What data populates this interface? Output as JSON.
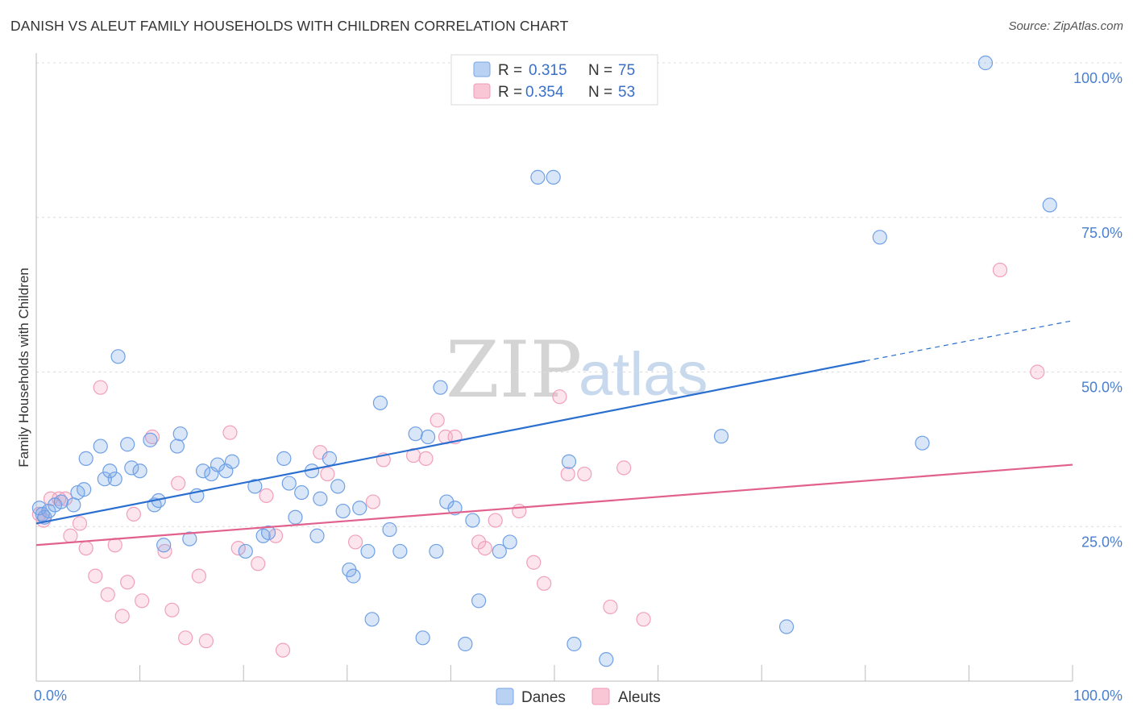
{
  "title": "DANISH VS ALEUT FAMILY HOUSEHOLDS WITH CHILDREN CORRELATION CHART",
  "source": "Source: ZipAtlas.com",
  "watermark": {
    "zip": "ZIP",
    "atlas": "atlas"
  },
  "legend_top": [
    {
      "r_label": "R =",
      "r_value": "0.315",
      "n_label": "N =",
      "n_value": "75"
    },
    {
      "r_label": "R =",
      "r_value": "0.354",
      "n_label": "N =",
      "n_value": "53"
    }
  ],
  "legend_bottom": [
    "Danes",
    "Aleuts"
  ],
  "chart_data": {
    "type": "scatter",
    "title": "DANISH VS ALEUT FAMILY HOUSEHOLDS WITH CHILDREN CORRELATION CHART",
    "xlabel": "",
    "ylabel": "Family Households with Children",
    "xlim": [
      0,
      100
    ],
    "ylim": [
      0,
      100
    ],
    "x_tick_labels": [
      "0.0%",
      "100.0%"
    ],
    "y_ticks": [
      25,
      50,
      75,
      100
    ],
    "y_tick_labels": [
      "25.0%",
      "50.0%",
      "75.0%",
      "100.0%"
    ],
    "grid": "horizontal dashed",
    "legend_placement": "top-center",
    "colors": {
      "danes": "#6fa0e6",
      "aleuts": "#f0a0bc",
      "danes_line": "#2a6fd0",
      "aleuts_line": "#e2608e"
    },
    "series": [
      {
        "name": "Danes",
        "r": 0.315,
        "n": 75,
        "trend": {
          "x0": 0,
          "y0": 25.5,
          "x1": 80,
          "y1": 51.8,
          "dashed_to_x": 100,
          "dashed_to_y": 58.3
        },
        "points": [
          [
            0.3,
            28
          ],
          [
            0.6,
            27
          ],
          [
            0.8,
            26.5
          ],
          [
            1.2,
            27.5
          ],
          [
            1.8,
            28.5
          ],
          [
            2.4,
            29
          ],
          [
            3.6,
            28.5
          ],
          [
            4,
            30.5
          ],
          [
            4.8,
            36
          ],
          [
            4.6,
            31
          ],
          [
            6.2,
            38
          ],
          [
            6.6,
            32.7
          ],
          [
            7.1,
            34
          ],
          [
            7.6,
            32.7
          ],
          [
            8.8,
            38.3
          ],
          [
            9.2,
            34.5
          ],
          [
            10,
            34
          ],
          [
            7.9,
            52.5
          ],
          [
            11,
            39
          ],
          [
            11.4,
            28.5
          ],
          [
            11.8,
            29.2
          ],
          [
            12.3,
            22
          ],
          [
            13.6,
            38
          ],
          [
            13.9,
            40
          ],
          [
            14.8,
            23
          ],
          [
            15.5,
            30
          ],
          [
            16.1,
            34
          ],
          [
            16.9,
            33.5
          ],
          [
            17.5,
            35
          ],
          [
            18.3,
            34
          ],
          [
            18.9,
            35.5
          ],
          [
            20.2,
            21
          ],
          [
            21.1,
            31.5
          ],
          [
            21.9,
            23.5
          ],
          [
            22.4,
            24
          ],
          [
            23.9,
            36
          ],
          [
            24.4,
            32
          ],
          [
            25,
            26.5
          ],
          [
            25.6,
            30.5
          ],
          [
            26.6,
            34
          ],
          [
            27.1,
            23.5
          ],
          [
            27.4,
            29.5
          ],
          [
            28.3,
            36
          ],
          [
            29.1,
            31.5
          ],
          [
            29.6,
            27.5
          ],
          [
            30.2,
            18
          ],
          [
            30.6,
            17
          ],
          [
            31.2,
            28
          ],
          [
            32,
            21
          ],
          [
            32.4,
            10
          ],
          [
            33.2,
            45
          ],
          [
            34.1,
            24.5
          ],
          [
            35.1,
            21
          ],
          [
            36.6,
            40
          ],
          [
            37.3,
            7
          ],
          [
            37.8,
            39.5
          ],
          [
            38.6,
            21
          ],
          [
            39,
            47.5
          ],
          [
            39.6,
            29
          ],
          [
            40.4,
            28
          ],
          [
            41.4,
            6
          ],
          [
            42.1,
            26
          ],
          [
            42.7,
            13
          ],
          [
            44.7,
            21
          ],
          [
            45.7,
            22.5
          ],
          [
            48.4,
            81.5
          ],
          [
            49.9,
            81.5
          ],
          [
            51.4,
            35.5
          ],
          [
            51.9,
            6
          ],
          [
            55,
            3.5
          ],
          [
            66.1,
            39.6
          ],
          [
            72.4,
            8.8
          ],
          [
            81.4,
            71.8
          ],
          [
            85.5,
            38.5
          ],
          [
            91.6,
            100
          ],
          [
            97.8,
            77
          ]
        ]
      },
      {
        "name": "Aleuts",
        "r": 0.354,
        "n": 53,
        "trend": {
          "x0": 0,
          "y0": 22,
          "x1": 100,
          "y1": 35
        },
        "points": [
          [
            0.3,
            27
          ],
          [
            0.7,
            26
          ],
          [
            1.4,
            29.5
          ],
          [
            2.2,
            29.5
          ],
          [
            2.8,
            29.5
          ],
          [
            3.3,
            23.5
          ],
          [
            4.2,
            25.5
          ],
          [
            4.8,
            21.5
          ],
          [
            5.7,
            17
          ],
          [
            6.2,
            47.5
          ],
          [
            6.9,
            14
          ],
          [
            7.6,
            22
          ],
          [
            8.3,
            10.5
          ],
          [
            8.8,
            16
          ],
          [
            9.4,
            27
          ],
          [
            10.2,
            13
          ],
          [
            11.2,
            39.5
          ],
          [
            12.4,
            21
          ],
          [
            13.1,
            11.5
          ],
          [
            13.7,
            32
          ],
          [
            14.4,
            7
          ],
          [
            15.7,
            17
          ],
          [
            16.4,
            6.5
          ],
          [
            18.7,
            40.2
          ],
          [
            19.5,
            21.5
          ],
          [
            21.4,
            19
          ],
          [
            22.2,
            30
          ],
          [
            23.1,
            23.5
          ],
          [
            23.8,
            5
          ],
          [
            27.4,
            37
          ],
          [
            28.1,
            33.5
          ],
          [
            30.8,
            22.5
          ],
          [
            32.5,
            29
          ],
          [
            33.5,
            35.8
          ],
          [
            36.4,
            36.5
          ],
          [
            37.6,
            36
          ],
          [
            38.7,
            42.2
          ],
          [
            39.5,
            39.5
          ],
          [
            40.4,
            39.5
          ],
          [
            42.7,
            22.5
          ],
          [
            43.3,
            21.5
          ],
          [
            44.3,
            26
          ],
          [
            46.6,
            27.5
          ],
          [
            48,
            19.2
          ],
          [
            49,
            15.8
          ],
          [
            50.5,
            46
          ],
          [
            51.3,
            33.5
          ],
          [
            52.9,
            33.5
          ],
          [
            55.4,
            12
          ],
          [
            56.7,
            34.5
          ],
          [
            58.6,
            10
          ],
          [
            93,
            66.5
          ],
          [
            96.6,
            50
          ]
        ]
      }
    ]
  }
}
